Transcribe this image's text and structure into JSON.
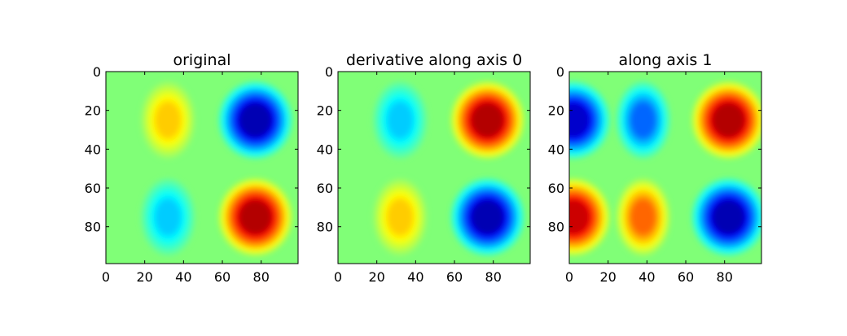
{
  "chart_data": [
    {
      "type": "heatmap",
      "title": "original",
      "colormap": "jet",
      "x_ticks": [
        0,
        20,
        40,
        60,
        80
      ],
      "y_ticks": [
        0,
        20,
        40,
        60,
        80
      ],
      "xlim": [
        0,
        99
      ],
      "ylim": [
        99,
        0
      ],
      "peaks": [
        {
          "x": 32,
          "y": 25,
          "value": 0.35
        },
        {
          "x": 77,
          "y": 25,
          "value": -0.9
        },
        {
          "x": 32,
          "y": 75,
          "value": -0.35
        },
        {
          "x": 77,
          "y": 75,
          "value": 0.9
        }
      ]
    },
    {
      "type": "heatmap",
      "title": "derivative along axis 0",
      "colormap": "jet",
      "x_ticks": [
        0,
        20,
        40,
        60,
        80
      ],
      "y_ticks": [
        0,
        20,
        40,
        60,
        80
      ],
      "xlim": [
        0,
        99
      ],
      "ylim": [
        99,
        0
      ],
      "peaks": [
        {
          "x": 32,
          "y": 25,
          "value": -0.35
        },
        {
          "x": 77,
          "y": 25,
          "value": 0.9
        },
        {
          "x": 32,
          "y": 75,
          "value": 0.35
        },
        {
          "x": 77,
          "y": 75,
          "value": -0.9
        }
      ]
    },
    {
      "type": "heatmap",
      "title": "along axis 1",
      "colormap": "jet",
      "x_ticks": [
        0,
        20,
        40,
        60,
        80
      ],
      "y_ticks": [
        0,
        20,
        40,
        60,
        80
      ],
      "xlim": [
        0,
        99
      ],
      "ylim": [
        99,
        0
      ],
      "peaks": [
        {
          "x": 2,
          "y": 25,
          "value": -0.85
        },
        {
          "x": 38,
          "y": 25,
          "value": -0.55
        },
        {
          "x": 82,
          "y": 25,
          "value": 0.9
        },
        {
          "x": 2,
          "y": 75,
          "value": 0.85
        },
        {
          "x": 38,
          "y": 75,
          "value": 0.55
        },
        {
          "x": 82,
          "y": 75,
          "value": -0.9
        }
      ]
    }
  ]
}
